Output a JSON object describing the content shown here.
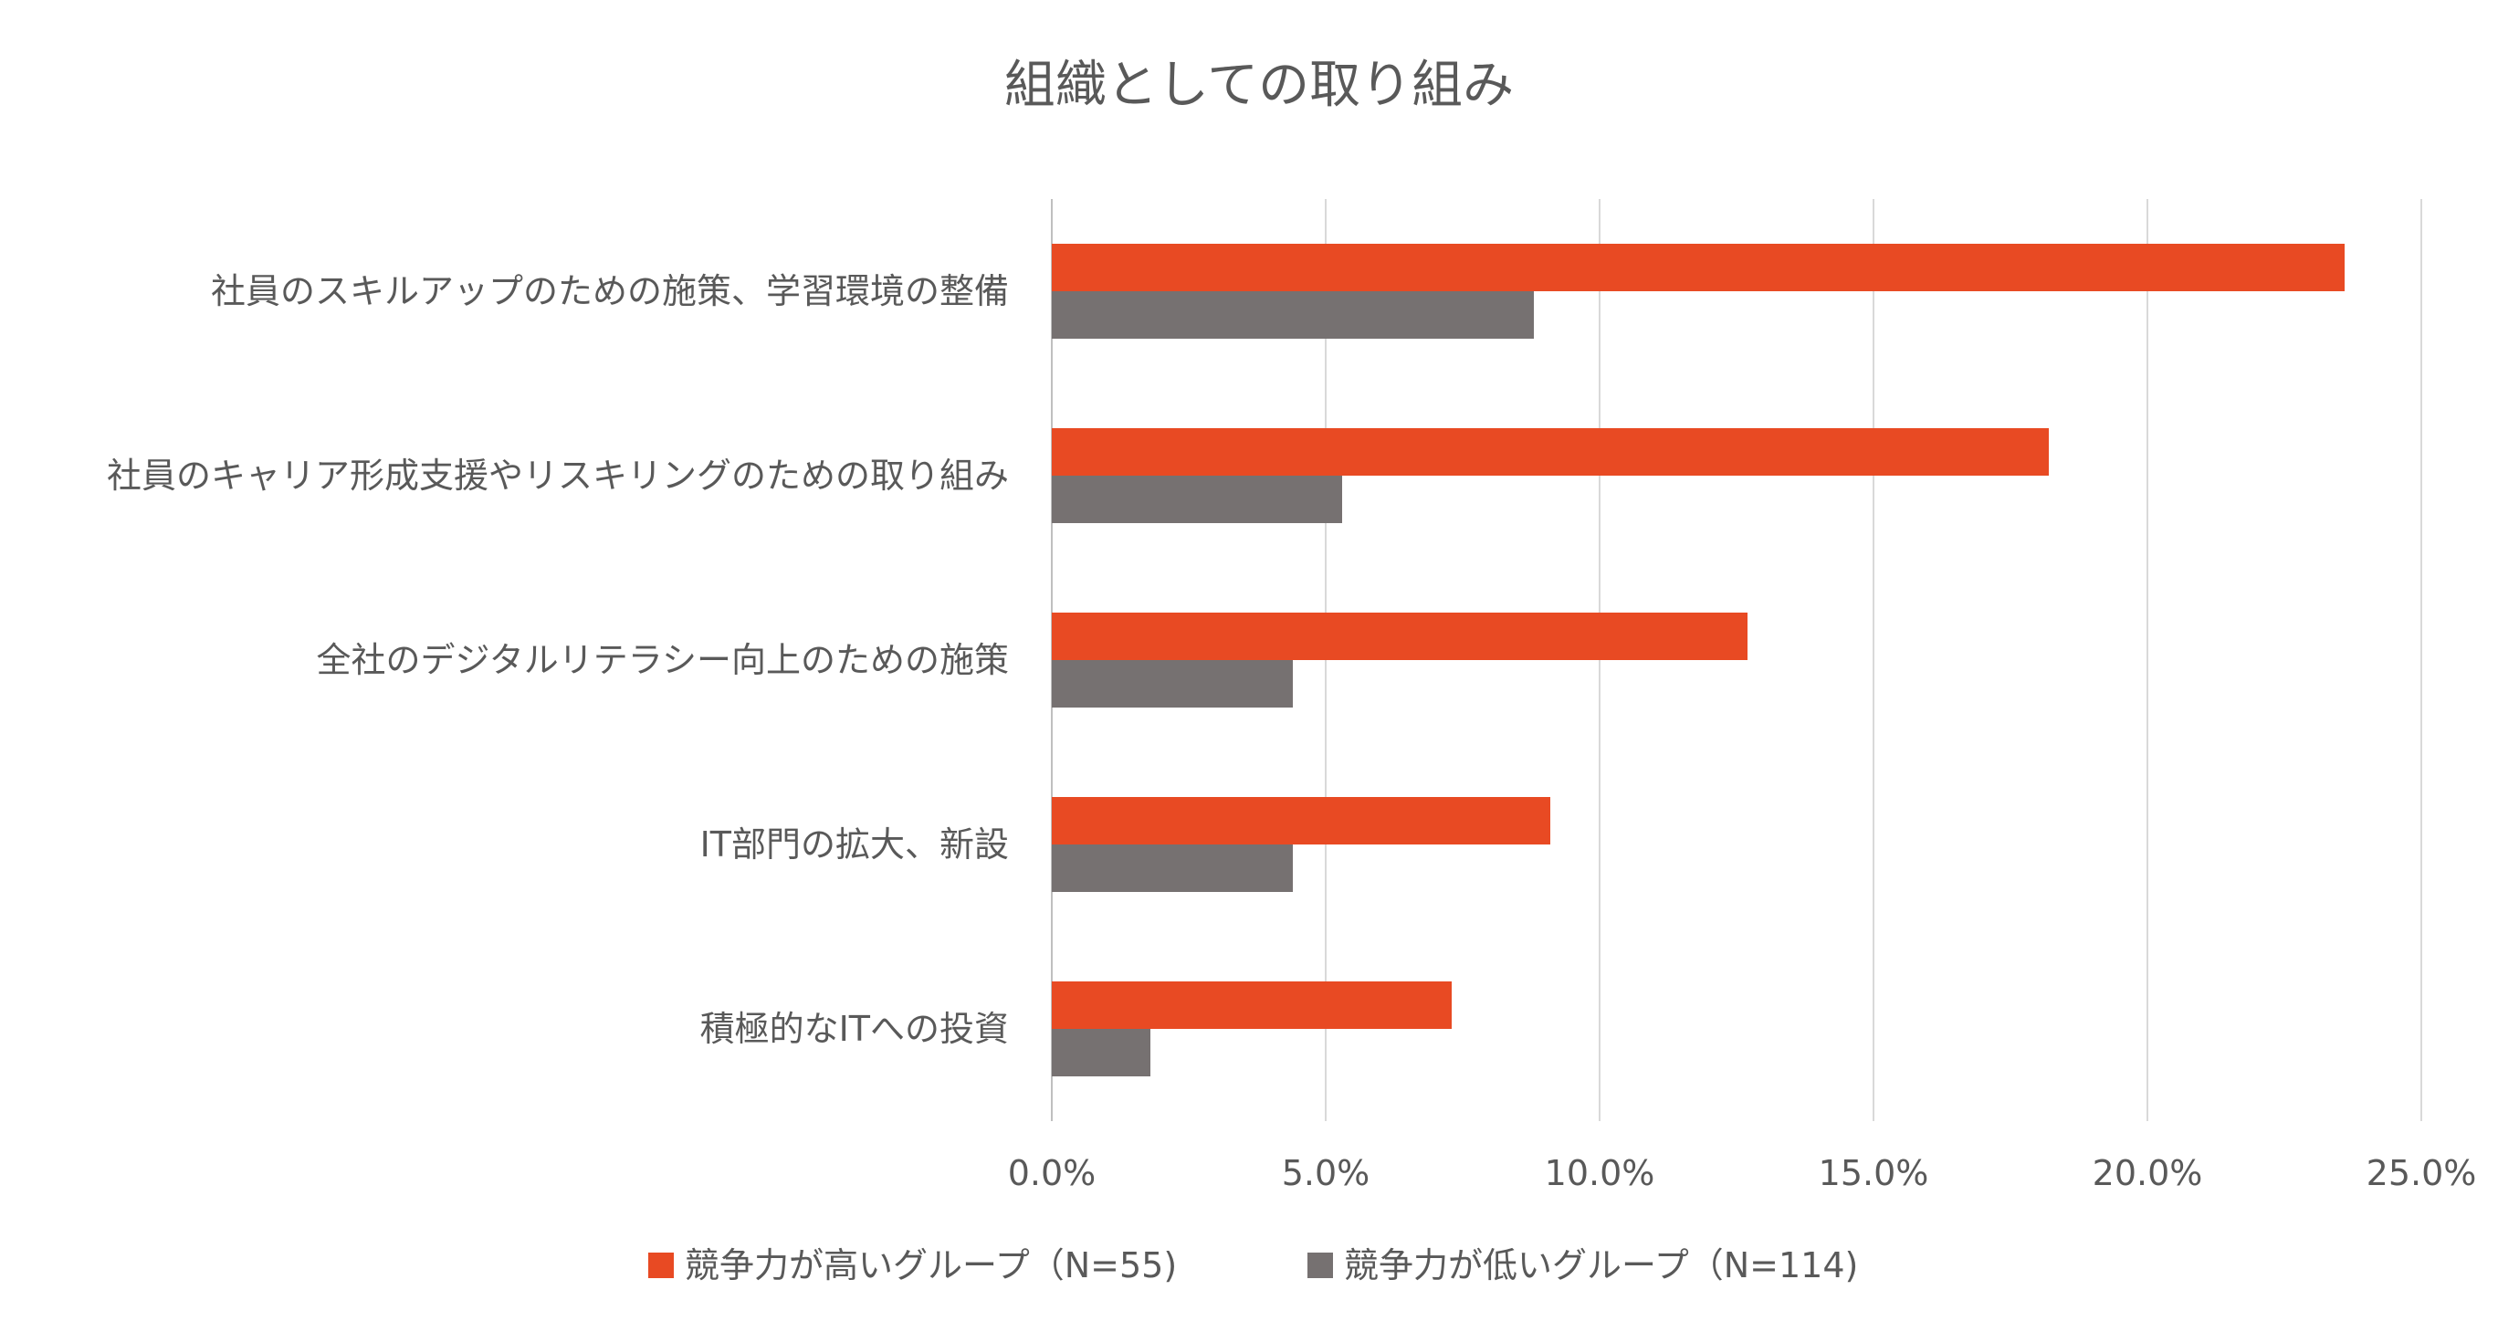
{
  "chart_data": {
    "type": "bar",
    "orientation": "horizontal",
    "title": "組織としての取り組み",
    "categories": [
      "社員のスキルアップのための施策、学習環境の整備",
      "社員のキャリア形成支援やリスキリングのための取り組み",
      "全社のデジタルリテラシー向上のための施策",
      "IT部門の拡大、新設",
      "積極的なITへの投資"
    ],
    "series": [
      {
        "name": "競争力が高いグループ（N=55)",
        "color": "#E84A23",
        "values": [
          23.6,
          18.2,
          12.7,
          9.1,
          7.3
        ]
      },
      {
        "name": "競争力が低いグループ（N=114)",
        "color": "#767171",
        "values": [
          8.8,
          5.3,
          4.4,
          4.4,
          1.8
        ]
      }
    ],
    "xlim": [
      0,
      25
    ],
    "xticks": [
      0,
      5,
      10,
      15,
      20,
      25
    ],
    "xtick_labels": [
      "0.0%",
      "5.0%",
      "10.0%",
      "15.0%",
      "20.0%",
      "25.0%"
    ],
    "grid": true,
    "legend_position": "bottom"
  }
}
